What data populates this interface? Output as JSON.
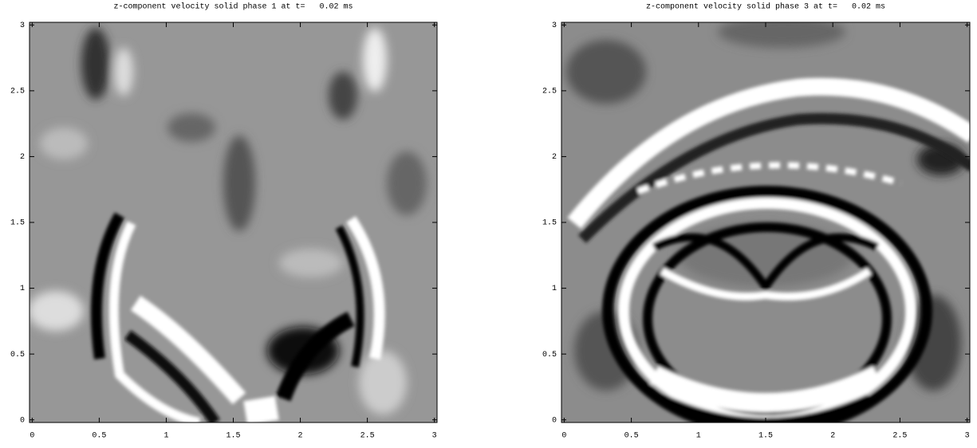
{
  "chart_data": [
    {
      "type": "contour",
      "title": "z-component velocity solid phase 1 at t=   0.02 ms",
      "xlim": [
        -0.02,
        3.02
      ],
      "ylim": [
        -0.02,
        3.02
      ],
      "xticks": [
        0,
        0.5,
        1,
        1.5,
        2,
        2.5,
        3
      ],
      "yticks": [
        0,
        0.5,
        1,
        1.5,
        2,
        2.5,
        3
      ]
    },
    {
      "type": "contour",
      "title": "z-component velocity solid phase 3 at t=   0.02 ms",
      "xlim": [
        -0.02,
        3.02
      ],
      "ylim": [
        -0.02,
        3.02
      ],
      "xticks": [
        0,
        0.5,
        1,
        1.5,
        2,
        2.5,
        3
      ],
      "yticks": [
        0,
        0.5,
        1,
        1.5,
        2,
        2.5,
        3
      ]
    }
  ]
}
